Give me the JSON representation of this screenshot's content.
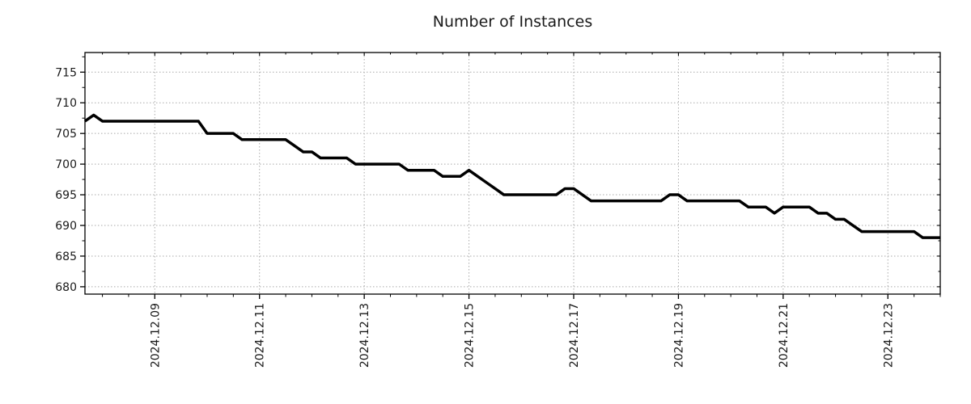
{
  "figure": {
    "title": "Number of Instances",
    "background": "#ffffff"
  },
  "chart_data": {
    "type": "line",
    "title": "Number of Instances",
    "xlabel": "",
    "ylabel": "",
    "series": [
      {
        "name": "instances",
        "start": "2024-12-07T16:00",
        "interval_hours": 4,
        "values": [
          707,
          708,
          707,
          707,
          707,
          707,
          707,
          707,
          707,
          707,
          707,
          707,
          707,
          707,
          705,
          705,
          705,
          705,
          704,
          704,
          704,
          704,
          704,
          704,
          703,
          702,
          702,
          701,
          701,
          701,
          701,
          700,
          700,
          700,
          700,
          700,
          700,
          699,
          699,
          699,
          699,
          698,
          698,
          698,
          699,
          698,
          697,
          696,
          695,
          695,
          695,
          695,
          695,
          695,
          695,
          696,
          696,
          695,
          694,
          694,
          694,
          694,
          694,
          694,
          694,
          694,
          694,
          695,
          695,
          694,
          694,
          694,
          694,
          694,
          694,
          694,
          693,
          693,
          693,
          692,
          693,
          693,
          693,
          693,
          692,
          692,
          691,
          691,
          690,
          689,
          689,
          689,
          689,
          689,
          689,
          689,
          688,
          688,
          688
        ]
      }
    ],
    "x_major_tick_labels": [
      "2024.12.09",
      "2024.12.11",
      "2024.12.13",
      "2024.12.15",
      "2024.12.17",
      "2024.12.19",
      "2024.12.21",
      "2024.12.23"
    ],
    "x_minor_tick_hours": 12,
    "y_ticks": [
      680,
      685,
      690,
      695,
      700,
      705,
      710,
      715
    ],
    "y_minor_step": 2.5,
    "xlim": [
      "2024-12-07T16:00",
      "2024-12-24T00:00"
    ],
    "ylim": [
      678.8,
      718.2
    ],
    "grid": "dotted",
    "grid_on": true,
    "legend": "none",
    "colors": {
      "line": "#000000",
      "grid": "#aaaaaa",
      "axis": "#000000",
      "text": "#1a1a1a"
    },
    "line_width": 3.5
  }
}
